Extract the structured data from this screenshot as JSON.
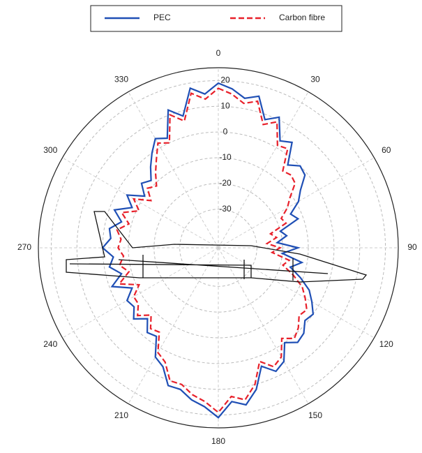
{
  "chart_data": {
    "type": "polar",
    "theta": [
      0,
      5,
      10,
      15,
      20,
      25,
      30,
      35,
      40,
      45,
      50,
      55,
      60,
      65,
      70,
      75,
      80,
      85,
      90,
      95,
      100,
      105,
      110,
      115,
      120,
      125,
      130,
      135,
      140,
      145,
      150,
      155,
      160,
      165,
      170,
      175,
      180,
      185,
      190,
      195,
      200,
      205,
      210,
      215,
      220,
      225,
      230,
      235,
      240,
      245,
      250,
      255,
      260,
      265,
      270,
      275,
      280,
      285,
      290,
      295,
      300,
      305,
      310,
      315,
      320,
      325,
      330,
      335,
      340,
      345,
      350,
      355
    ],
    "series": [
      {
        "name": "PEC",
        "color": "#1f4fb5",
        "dashed": false,
        "values": [
          19,
          17,
          14,
          16,
          8,
          11,
          3,
          5,
          -3,
          0,
          -1,
          -6,
          -9,
          -14,
          -12,
          -20,
          -18,
          -22,
          -14,
          -20,
          -12,
          -16,
          -11,
          -6,
          -3,
          0,
          -1,
          2,
          3,
          0,
          6,
          8,
          4,
          12,
          17,
          15,
          21,
          17,
          15,
          12,
          12,
          6,
          4,
          -3,
          -2,
          -6,
          -2,
          -5,
          -4,
          -8,
          -1,
          -6,
          -2,
          -4,
          0,
          -3,
          -2,
          -6,
          -2,
          -8,
          -4,
          -10,
          -6,
          -8,
          -4,
          0,
          4,
          2,
          12,
          8,
          18,
          15
        ]
      },
      {
        "name": "Carbon fibre",
        "color": "#e8202a",
        "dashed": true,
        "values": [
          17,
          15,
          12,
          14,
          6,
          9,
          1,
          2,
          -6,
          -5,
          -6,
          -11,
          -14,
          -18,
          -17,
          -24,
          -22,
          -26,
          -21,
          -24,
          -17,
          -19,
          -14,
          -9,
          -6,
          -3,
          -4,
          -1,
          1,
          -2,
          4,
          6,
          2,
          10,
          15,
          13,
          19,
          15,
          13,
          10,
          10,
          4,
          2,
          -5,
          -4,
          -8,
          -4,
          -7,
          -7,
          -11,
          -4,
          -9,
          -6,
          -8,
          -6,
          -7,
          -5,
          -9,
          -5,
          -11,
          -7,
          -13,
          -9,
          -11,
          -7,
          -3,
          2,
          0,
          10,
          6,
          16,
          13
        ]
      }
    ],
    "rlim": [
      -45,
      25
    ],
    "rticks": [
      -30,
      -20,
      -10,
      0,
      10,
      20
    ],
    "thetaticks": [
      0,
      30,
      60,
      90,
      120,
      150,
      180,
      210,
      240,
      270,
      300,
      330
    ],
    "direction": "clockwise",
    "zero": "top",
    "grid": true
  }
}
